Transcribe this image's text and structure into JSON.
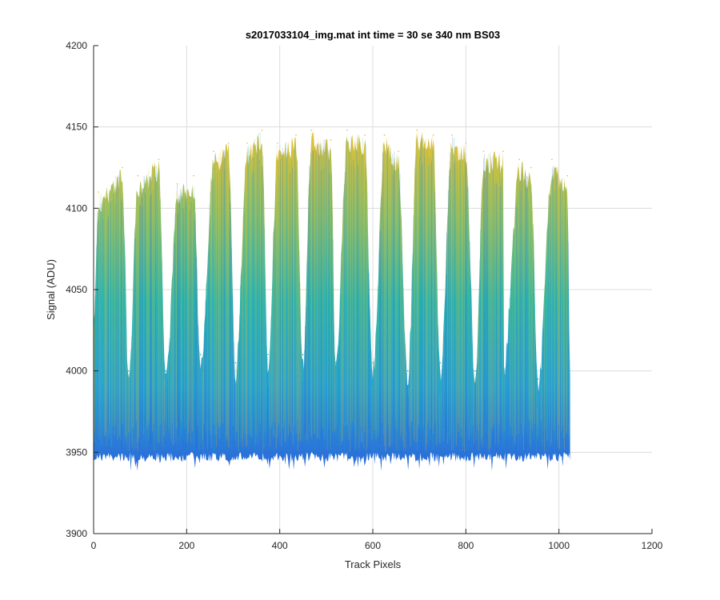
{
  "chart_data": {
    "type": "area",
    "title": "s2017033104_img.mat int time = 30 se  340 nm BS03",
    "xlabel": "Track Pixels",
    "ylabel": "Signal (ADU)",
    "xlim": [
      0,
      1200
    ],
    "ylim": [
      3900,
      4200
    ],
    "xticks": [
      0,
      200,
      400,
      600,
      800,
      1000,
      1200
    ],
    "yticks": [
      3900,
      3950,
      4000,
      4050,
      4100,
      4150,
      4200
    ],
    "grid": true,
    "colormap": [
      "#1e5fd8",
      "#1f9fd0",
      "#27b3a6",
      "#8cbd5e",
      "#e6bd2a"
    ],
    "data_range_x": [
      0,
      1024
    ],
    "baseline_noise_range": [
      3950,
      3975
    ],
    "peak_noise_band": [
      4090,
      4150
    ],
    "peaks": [
      {
        "x": 10,
        "max": 4110
      },
      {
        "x": 62,
        "max": 4125
      },
      {
        "x": 95,
        "max": 4120
      },
      {
        "x": 140,
        "max": 4130
      },
      {
        "x": 180,
        "max": 4115
      },
      {
        "x": 215,
        "max": 4120
      },
      {
        "x": 258,
        "max": 4135
      },
      {
        "x": 290,
        "max": 4140
      },
      {
        "x": 330,
        "max": 4140
      },
      {
        "x": 362,
        "max": 4148
      },
      {
        "x": 395,
        "max": 4140
      },
      {
        "x": 435,
        "max": 4145
      },
      {
        "x": 468,
        "max": 4148
      },
      {
        "x": 510,
        "max": 4142
      },
      {
        "x": 545,
        "max": 4148
      },
      {
        "x": 583,
        "max": 4145
      },
      {
        "x": 625,
        "max": 4145
      },
      {
        "x": 655,
        "max": 4135
      },
      {
        "x": 695,
        "max": 4148
      },
      {
        "x": 730,
        "max": 4145
      },
      {
        "x": 770,
        "max": 4145
      },
      {
        "x": 800,
        "max": 4140
      },
      {
        "x": 838,
        "max": 4135
      },
      {
        "x": 880,
        "max": 4135
      },
      {
        "x": 915,
        "max": 4130
      },
      {
        "x": 940,
        "max": 4125
      },
      {
        "x": 985,
        "max": 4130
      },
      {
        "x": 1018,
        "max": 4120
      }
    ],
    "dips": [
      {
        "x": 75,
        "min": 4000
      },
      {
        "x": 155,
        "min": 4000
      },
      {
        "x": 230,
        "min": 4010
      },
      {
        "x": 305,
        "min": 4005
      },
      {
        "x": 375,
        "min": 4010
      },
      {
        "x": 450,
        "min": 4010
      },
      {
        "x": 520,
        "min": 4005
      },
      {
        "x": 600,
        "min": 4005
      },
      {
        "x": 675,
        "min": 4000
      },
      {
        "x": 745,
        "min": 4005
      },
      {
        "x": 820,
        "min": 4000
      },
      {
        "x": 880,
        "min": 4005
      },
      {
        "x": 955,
        "min": 3995
      }
    ]
  }
}
